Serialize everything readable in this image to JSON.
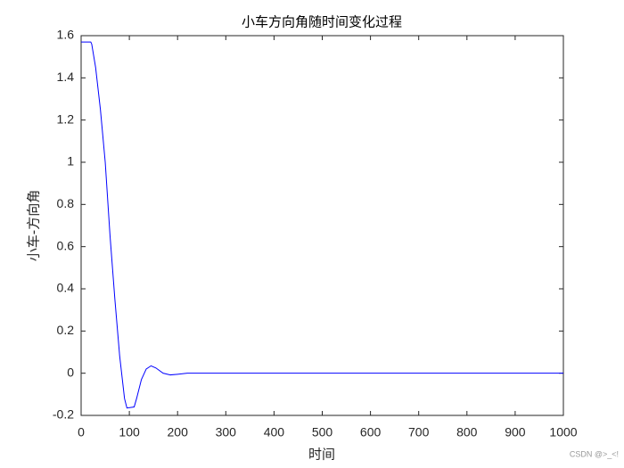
{
  "chart_data": {
    "type": "line",
    "title": "小车方向角随时间变化过程",
    "xlabel": "时间",
    "ylabel": "小车-方向角",
    "watermark": "CSDN @>_<!",
    "x": [
      0,
      20,
      22,
      30,
      40,
      50,
      60,
      70,
      80,
      90,
      95,
      110,
      115,
      125,
      135,
      145,
      155,
      170,
      185,
      200,
      220,
      300,
      1000
    ],
    "series": [
      {
        "color": "#0000ff",
        "values": [
          1.57,
          1.57,
          1.56,
          1.45,
          1.25,
          1.0,
          0.65,
          0.35,
          0.08,
          -0.12,
          -0.165,
          -0.16,
          -0.12,
          -0.03,
          0.02,
          0.035,
          0.025,
          0.0,
          -0.008,
          -0.005,
          0.0,
          0.0,
          0.0
        ]
      }
    ],
    "xlim": [
      0,
      1000
    ],
    "ylim": [
      -0.2,
      1.6
    ],
    "xticks": [
      0,
      100,
      200,
      300,
      400,
      500,
      600,
      700,
      800,
      900,
      1000
    ],
    "yticks": [
      -0.2,
      0,
      0.2,
      0.4,
      0.6,
      0.8,
      1,
      1.2,
      1.4,
      1.6
    ],
    "grid": false
  }
}
